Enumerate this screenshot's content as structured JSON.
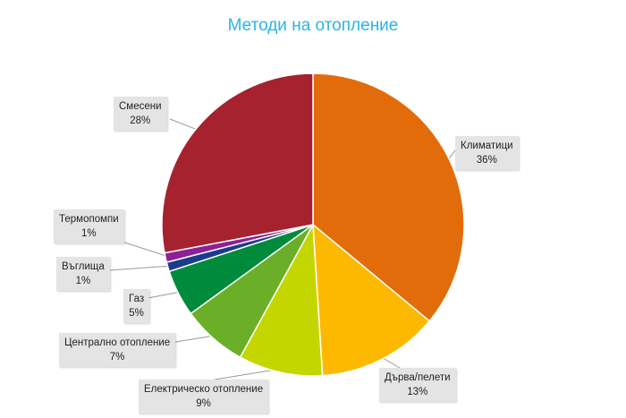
{
  "chart_data": {
    "type": "pie",
    "title": "Методи на отопление",
    "slices": [
      {
        "label": "Климатици",
        "value": 36,
        "pct": "36%",
        "color": "#e36c0a"
      },
      {
        "label": "Дърва/пелети",
        "value": 13,
        "pct": "13%",
        "color": "#fdb900"
      },
      {
        "label": "Електрическо отопление",
        "value": 9,
        "pct": "9%",
        "color": "#c4d600"
      },
      {
        "label": "Централно отопление",
        "value": 7,
        "pct": "7%",
        "color": "#6aaf27"
      },
      {
        "label": "Газ",
        "value": 5,
        "pct": "5%",
        "color": "#008a3c"
      },
      {
        "label": "Въглища",
        "value": 1,
        "pct": "1%",
        "color": "#1d3b8c"
      },
      {
        "label": "Термопомпи",
        "value": 1,
        "pct": "1%",
        "color": "#8e1f96"
      },
      {
        "label": "Смесени",
        "value": 28,
        "pct": "28%",
        "color": "#a6222e"
      }
    ],
    "data_labels": "callout",
    "legend": "none"
  }
}
